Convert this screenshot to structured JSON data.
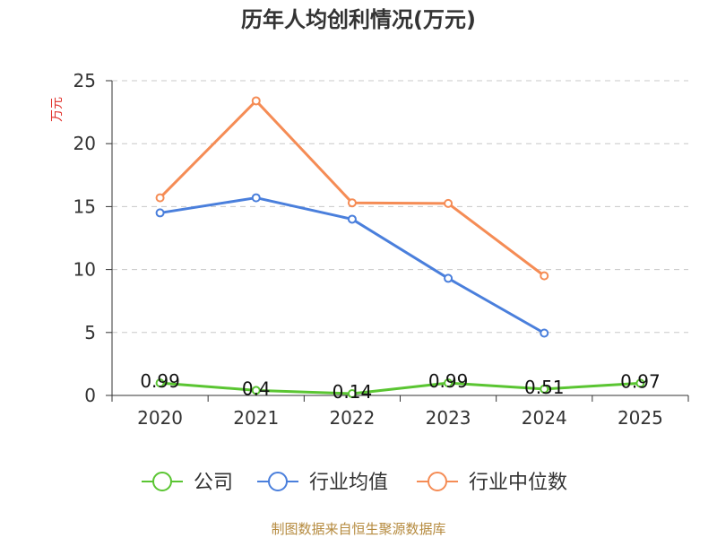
{
  "chart_data": {
    "type": "line",
    "title": "历年人均创利情况(万元)",
    "ylabel": "万元",
    "xlabel": "",
    "categories": [
      "2020",
      "2021",
      "2022",
      "2023",
      "2024",
      "2025"
    ],
    "ylim": [
      0,
      25
    ],
    "yticks": [
      0,
      5,
      10,
      15,
      20,
      25
    ],
    "grid": true,
    "legend_position": "bottom",
    "series": [
      {
        "name": "公司",
        "color": "#5ac532",
        "values": [
          0.99,
          0.4,
          0.14,
          0.99,
          0.51,
          0.97
        ],
        "labels": [
          "0.99",
          "0.4",
          "0.14",
          "0.99",
          "0.51",
          "0.97"
        ]
      },
      {
        "name": "行业均值",
        "color": "#4a7fdc",
        "values": [
          14.5,
          15.7,
          14.0,
          9.3,
          4.95,
          null
        ]
      },
      {
        "name": "行业中位数",
        "color": "#f58c55",
        "values": [
          15.7,
          23.4,
          15.3,
          15.25,
          9.5,
          null
        ]
      }
    ],
    "source": "制图数据来自恒生聚源数据库",
    "colors": {
      "ylabel": "#e0302a",
      "source": "#b58a3e",
      "axis": "#333333",
      "grid": "#c8c8c8"
    }
  }
}
